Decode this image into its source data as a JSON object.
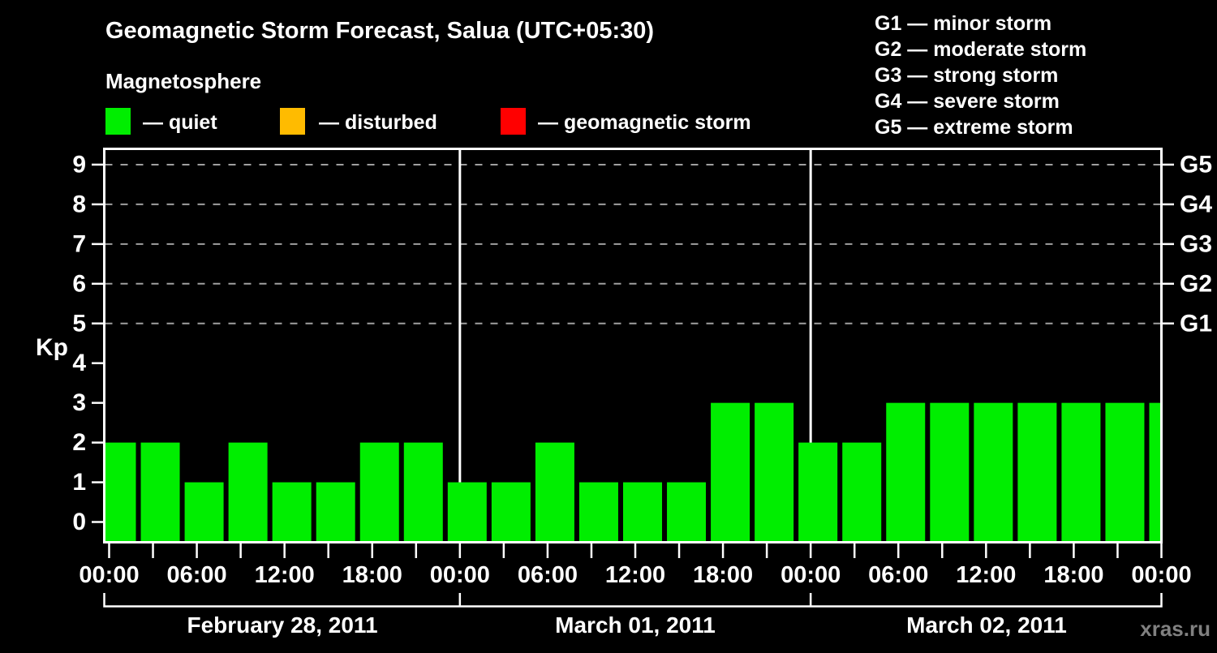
{
  "page": {
    "background": "#000000"
  },
  "header": {
    "title": "Geomagnetic Storm Forecast, Salua (UTC+05:30)",
    "subtitle": "Magnetosphere",
    "legend": [
      {
        "status": "quiet",
        "label": "— quiet",
        "color": "#00ee00"
      },
      {
        "status": "disturbed",
        "label": "— disturbed",
        "color": "#ffbb00"
      },
      {
        "status": "storm",
        "label": "— geomagnetic storm",
        "color": "#ff0000"
      }
    ],
    "g_scale": [
      {
        "label": "G1 — minor storm"
      },
      {
        "label": "G2 — moderate storm"
      },
      {
        "label": "G3 — strong storm"
      },
      {
        "label": "G4 — severe storm"
      },
      {
        "label": "G5 — extreme storm"
      }
    ]
  },
  "watermark": {
    "text": "xras.ru",
    "color": "#808080"
  },
  "chart_data": {
    "type": "bar",
    "title": "Geomagnetic Storm Forecast, Salua (UTC+05:30)",
    "ylabel": "Kp",
    "ylim": [
      0,
      9
    ],
    "y_ticks": [
      0,
      1,
      2,
      3,
      4,
      5,
      6,
      7,
      8,
      9
    ],
    "grid_levels": [
      5,
      6,
      7,
      8,
      9
    ],
    "grid_style": "dashed",
    "right_axis": [
      {
        "kp": 5,
        "label": "G1"
      },
      {
        "kp": 6,
        "label": "G2"
      },
      {
        "kp": 7,
        "label": "G3"
      },
      {
        "kp": 8,
        "label": "G4"
      },
      {
        "kp": 9,
        "label": "G5"
      }
    ],
    "x_tick_interval_hours": 3,
    "x_tick_labels": [
      "00:00",
      "06:00",
      "12:00",
      "18:00",
      "00:00",
      "06:00",
      "12:00",
      "18:00",
      "00:00",
      "06:00",
      "12:00",
      "18:00",
      "00:00"
    ],
    "days": [
      {
        "date": "February 28, 2011",
        "kp": [
          2,
          2,
          1,
          2,
          1,
          1,
          2,
          2
        ],
        "statuses": [
          "quiet",
          "quiet",
          "quiet",
          "quiet",
          "quiet",
          "quiet",
          "quiet",
          "quiet"
        ]
      },
      {
        "date": "March 01, 2011",
        "kp": [
          1,
          1,
          2,
          1,
          1,
          1,
          3,
          3
        ],
        "statuses": [
          "quiet",
          "quiet",
          "quiet",
          "quiet",
          "quiet",
          "quiet",
          "quiet",
          "quiet"
        ]
      },
      {
        "date": "March 02, 2011",
        "kp": [
          2,
          2,
          3,
          3,
          3,
          3,
          3,
          3
        ],
        "statuses": [
          "quiet",
          "quiet",
          "quiet",
          "quiet",
          "quiet",
          "quiet",
          "quiet",
          "quiet"
        ]
      }
    ],
    "trailing_bar": {
      "kp": 3,
      "status": "quiet"
    },
    "bar_status_colors": {
      "quiet": "#00ee00",
      "disturbed": "#ffbb00",
      "storm": "#ff0000"
    },
    "legend_position": "top-left"
  }
}
